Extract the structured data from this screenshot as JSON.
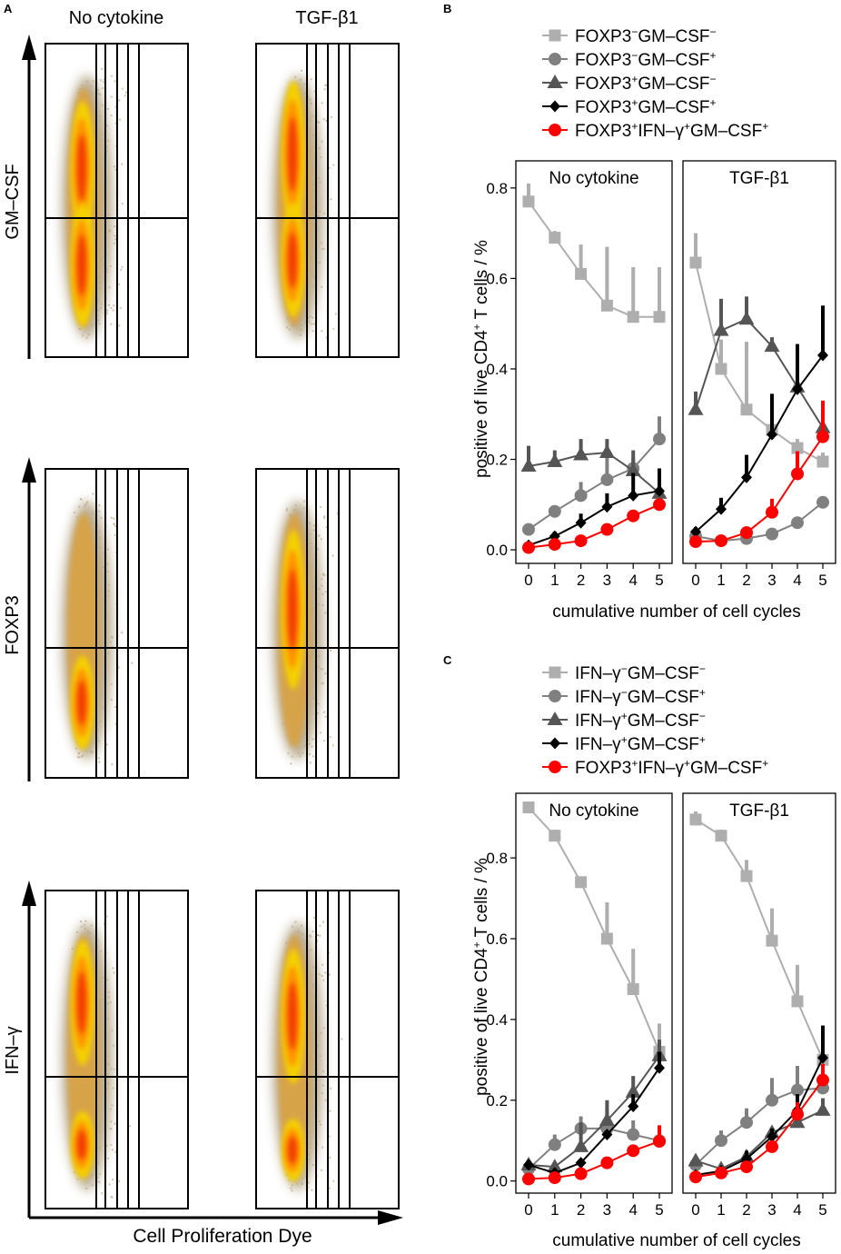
{
  "panel_a": {
    "letter": "A",
    "col_titles": [
      "No cytokine",
      "TGF-β1"
    ],
    "row_labels": [
      "GM–CSF",
      "FOXP3",
      "IFN–γ"
    ],
    "x_axis_label": "Cell Proliferation Dye"
  },
  "panel_b": {
    "letter": "B",
    "legend": [
      {
        "main": "FOXP3",
        "sup1": "−",
        "mid": "GM–CSF",
        "sup2": "−",
        "mid2": "",
        "sup3": ""
      },
      {
        "main": "FOXP3",
        "sup1": "−",
        "mid": "GM–CSF",
        "sup2": "+",
        "mid2": "",
        "sup3": ""
      },
      {
        "main": "FOXP3",
        "sup1": "+",
        "mid": "GM–CSF",
        "sup2": "−",
        "mid2": "",
        "sup3": ""
      },
      {
        "main": "FOXP3",
        "sup1": "+",
        "mid": "GM–CSF",
        "sup2": "+",
        "mid2": "",
        "sup3": ""
      },
      {
        "main": "FOXP3",
        "sup1": "+",
        "mid": "IFN–γ",
        "sup2": "+",
        "mid2": "GM–CSF",
        "sup3": "+"
      }
    ]
  },
  "panel_c": {
    "letter": "C",
    "legend": [
      {
        "main": "IFN–γ",
        "sup1": "−",
        "mid": "GM–CSF",
        "sup2": "−",
        "mid2": "",
        "sup3": ""
      },
      {
        "main": "IFN–γ",
        "sup1": "−",
        "mid": "GM–CSF",
        "sup2": "+",
        "mid2": "",
        "sup3": ""
      },
      {
        "main": "IFN–γ",
        "sup1": "+",
        "mid": "GM–CSF",
        "sup2": "−",
        "mid2": "",
        "sup3": ""
      },
      {
        "main": "IFN–γ",
        "sup1": "+",
        "mid": "GM–CSF",
        "sup2": "+",
        "mid2": "",
        "sup3": ""
      },
      {
        "main": "FOXP3",
        "sup1": "+",
        "mid": "IFN–γ",
        "sup2": "+",
        "mid2": "GM–CSF",
        "sup3": "+"
      }
    ]
  },
  "ylabel_pre": "positive of live CD4",
  "ylabel_sup": "+",
  "ylabel_post": " T cells / %",
  "chart_data": [
    {
      "type": "line",
      "panel": "B",
      "xlabel": "cumulative number of cell cycles",
      "x": [
        0,
        1,
        2,
        3,
        4,
        5
      ],
      "ylim": [
        -0.03,
        0.86
      ],
      "yticks": [
        0.0,
        0.2,
        0.4,
        0.6,
        0.8
      ],
      "ytick_labels": [
        "0.0",
        "0.2",
        "0.4",
        "0.6",
        "0.8"
      ],
      "facets": [
        {
          "title": "No cytokine",
          "series": [
            {
              "name": "FOXP3−GM−CSF−",
              "values": [
                0.77,
                0.69,
                0.61,
                0.54,
                0.515,
                0.515
              ],
              "err": [
                0.04,
                0.015,
                0.065,
                0.13,
                0.11,
                0.11
              ]
            },
            {
              "name": "FOXP3−GM−CSF+",
              "values": [
                0.045,
                0.085,
                0.12,
                0.155,
                0.18,
                0.245
              ],
              "err": [
                0.0,
                0.0,
                0.03,
                0.05,
                0.025,
                0.05
              ]
            },
            {
              "name": "FOXP3+GM−CSF−",
              "values": [
                0.185,
                0.195,
                0.21,
                0.215,
                0.175,
                0.125
              ],
              "err": [
                0.045,
                0.025,
                0.035,
                0.03,
                0.045,
                0.035
              ]
            },
            {
              "name": "FOXP3+GM−CSF+",
              "values": [
                0.01,
                0.03,
                0.06,
                0.095,
                0.12,
                0.13
              ],
              "err": [
                0.0,
                0.01,
                0.02,
                0.03,
                0.05,
                0.05
              ]
            },
            {
              "name": "FOXP3+IFN−γ+GM−CSF+",
              "values": [
                0.005,
                0.012,
                0.02,
                0.045,
                0.075,
                0.1
              ],
              "err": [
                0.0,
                0.0,
                0.0,
                0.0,
                0.0,
                0.0
              ]
            }
          ]
        },
        {
          "title": "TGF-β1",
          "series": [
            {
              "name": "FOXP3−GM−CSF−",
              "values": [
                0.635,
                0.4,
                0.31,
                0.265,
                0.225,
                0.195
              ],
              "err": [
                0.065,
                0.065,
                0.15,
                0.03,
                0.02,
                0.02
              ]
            },
            {
              "name": "FOXP3−GM−CSF+",
              "values": [
                0.03,
                0.02,
                0.025,
                0.035,
                0.06,
                0.105
              ],
              "err": [
                0.0,
                0.0,
                0.0,
                0.0,
                0.0,
                0.0
              ]
            },
            {
              "name": "FOXP3+GM−CSF−",
              "values": [
                0.31,
                0.485,
                0.51,
                0.45,
                0.36,
                0.27
              ],
              "err": [
                0.04,
                0.07,
                0.05,
                0.02,
                0.06,
                0.03
              ]
            },
            {
              "name": "FOXP3+GM−CSF+",
              "values": [
                0.04,
                0.09,
                0.16,
                0.255,
                0.355,
                0.43
              ],
              "err": [
                0.01,
                0.025,
                0.05,
                0.09,
                0.1,
                0.11
              ]
            },
            {
              "name": "FOXP3+IFN−γ+GM−CSF+",
              "values": [
                0.018,
                0.02,
                0.038,
                0.083,
                0.168,
                0.25
              ],
              "err": [
                0.0,
                0.0,
                0.0,
                0.03,
                0.05,
                0.08
              ]
            }
          ]
        }
      ]
    },
    {
      "type": "line",
      "panel": "C",
      "xlabel": "cumulative number of cell cycles",
      "x": [
        0,
        1,
        2,
        3,
        4,
        5
      ],
      "ylim": [
        -0.03,
        0.96
      ],
      "yticks": [
        0.0,
        0.2,
        0.4,
        0.6,
        0.8
      ],
      "ytick_labels": [
        "0.0",
        "0.2",
        "0.4",
        "0.6",
        "0.8"
      ],
      "facets": [
        {
          "title": "No cytokine",
          "series": [
            {
              "name": "IFN−γ−GM−CSF−",
              "values": [
                0.925,
                0.855,
                0.74,
                0.6,
                0.475,
                0.32
              ],
              "err": [
                0.0,
                0.015,
                0.01,
                0.09,
                0.1,
                0.07
              ]
            },
            {
              "name": "IFN−γ−GM−CSF+",
              "values": [
                0.03,
                0.09,
                0.13,
                0.13,
                0.115,
                0.1
              ],
              "err": [
                0.0,
                0.025,
                0.03,
                0.05,
                0.035,
                0.0
              ]
            },
            {
              "name": "IFN−γ+GM−CSF−",
              "values": [
                0.04,
                0.035,
                0.085,
                0.15,
                0.22,
                0.31
              ],
              "err": [
                0.0,
                0.0,
                0.06,
                0.05,
                0.04,
                0.04
              ]
            },
            {
              "name": "IFN−γ+GM−CSF+",
              "values": [
                0.04,
                0.02,
                0.045,
                0.115,
                0.185,
                0.28
              ],
              "err": [
                0.0,
                0.0,
                0.0,
                0.0,
                0.03,
                0.04
              ]
            },
            {
              "name": "FOXP3+IFN−γ+GM−CSF+",
              "values": [
                0.005,
                0.008,
                0.018,
                0.045,
                0.075,
                0.098
              ],
              "err": [
                0.0,
                0.0,
                0.0,
                0.0,
                0.0,
                0.04
              ]
            }
          ]
        },
        {
          "title": "TGF-β1",
          "series": [
            {
              "name": "IFN−γ−GM−CSF−",
              "values": [
                0.895,
                0.855,
                0.755,
                0.595,
                0.445,
                0.3
              ],
              "err": [
                0.02,
                0.015,
                0.04,
                0.08,
                0.09,
                0.04
              ]
            },
            {
              "name": "IFN−γ−GM−CSF+",
              "values": [
                0.04,
                0.1,
                0.145,
                0.2,
                0.225,
                0.23
              ],
              "err": [
                0.0,
                0.025,
                0.035,
                0.055,
                0.06,
                0.06
              ]
            },
            {
              "name": "IFN−γ+GM−CSF−",
              "values": [
                0.05,
                0.03,
                0.06,
                0.12,
                0.145,
                0.175
              ],
              "err": [
                0.0,
                0.0,
                0.0,
                0.0,
                0.0,
                0.03
              ]
            },
            {
              "name": "IFN−γ+GM−CSF+",
              "values": [
                0.015,
                0.025,
                0.055,
                0.11,
                0.175,
                0.305
              ],
              "err": [
                0.0,
                0.0,
                0.02,
                0.02,
                0.04,
                0.08
              ]
            },
            {
              "name": "FOXP3+IFN−γ+GM−CSF+",
              "values": [
                0.01,
                0.02,
                0.035,
                0.085,
                0.165,
                0.25
              ],
              "err": [
                0.0,
                0.0,
                0.0,
                0.0,
                0.03,
                0.04
              ]
            }
          ]
        }
      ]
    }
  ],
  "colors": {
    "light_gray": "#aeaeae",
    "mid_gray": "#808080",
    "dark_gray": "#555555",
    "black": "#000000",
    "red": "#ff0000",
    "density_outer": "#b8a98a",
    "density_mid": "#d7a34a",
    "density_yellow": "#f5d000",
    "density_orange": "#ff9400",
    "density_core": "#f23a00"
  },
  "series_markers": [
    "square",
    "circle",
    "triangle",
    "diamond",
    "circle"
  ]
}
